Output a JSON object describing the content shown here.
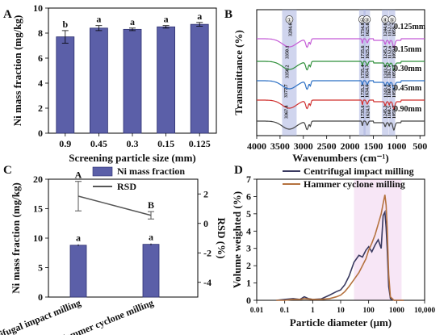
{
  "panels": {
    "A": "A",
    "B": "B",
    "C": "C",
    "D": "D"
  },
  "chart_data": [
    {
      "id": "A",
      "type": "bar",
      "categories": [
        "0.9",
        "0.45",
        "0.3",
        "0.15",
        "0.125"
      ],
      "values": [
        7.7,
        8.4,
        8.3,
        8.5,
        8.7
      ],
      "errors": [
        0.5,
        0.2,
        0.1,
        0.1,
        0.15
      ],
      "letters": [
        "b",
        "a",
        "a",
        "a",
        "a"
      ],
      "xlabel": "Screening particle size (mm)",
      "ylabel": "Ni mass fraction (mg/kg)",
      "ylim": [
        0,
        10
      ],
      "yticks": [
        0,
        2,
        4,
        6,
        8,
        10
      ],
      "bar_color": "#5b5fa8"
    },
    {
      "id": "B",
      "type": "line",
      "xlabel": "Wavenumbers (cm⁻¹)",
      "ylabel": "Transmittance (%)",
      "xlim": [
        4000,
        400
      ],
      "xticks": [
        4000,
        3500,
        3000,
        2500,
        2000,
        1500,
        1000,
        500
      ],
      "series": [
        {
          "name": "0.125mm",
          "color": "#c45ad6"
        },
        {
          "name": "0.15mm",
          "color": "#2f8f3a"
        },
        {
          "name": "0.30mm",
          "color": "#2b6fc4"
        },
        {
          "name": "0.45mm",
          "color": "#d0302f"
        },
        {
          "name": "0.90mm",
          "color": "#444444"
        }
      ],
      "bands": [
        {
          "marker": "①",
          "x": 3300
        },
        {
          "marker": "②",
          "x": 1735
        },
        {
          "marker": "③",
          "x": 1640
        },
        {
          "marker": "④",
          "x": 1245
        },
        {
          "marker": "⑤",
          "x": 1100
        }
      ],
      "peak_labels": [
        {
          "x": 3284,
          "text": "3284.6",
          "series": 0
        },
        {
          "x": 3350,
          "text": "3350.1",
          "series": 1
        },
        {
          "x": 3350,
          "text": "3350.2",
          "series": 2
        },
        {
          "x": 3377,
          "text": "3377.7",
          "series": 3
        },
        {
          "x": 3367,
          "text": "3367.4",
          "series": 4
        },
        {
          "x": 1735,
          "text": "1734.8",
          "series": 0
        },
        {
          "x": 1625,
          "text": "1625.6",
          "series": 0
        },
        {
          "x": 1244,
          "text": "1244.6",
          "series": 0
        },
        {
          "x": 1152,
          "text": "1152.5",
          "series": 0
        },
        {
          "x": 1059,
          "text": "1059.7",
          "series": 0
        },
        {
          "x": 1735,
          "text": "1735.6",
          "series": 1
        },
        {
          "x": 1625,
          "text": "1625.2",
          "series": 1
        },
        {
          "x": 1245,
          "text": "1245.3",
          "series": 1
        },
        {
          "x": 1152,
          "text": "1152.6",
          "series": 1
        },
        {
          "x": 1059,
          "text": "1059.8",
          "series": 1
        },
        {
          "x": 1735,
          "text": "1735.4",
          "series": 2
        },
        {
          "x": 1634,
          "text": "1634.7",
          "series": 2
        },
        {
          "x": 1243,
          "text": "1243.5",
          "series": 2
        },
        {
          "x": 1161,
          "text": "1161.7",
          "series": 2
        },
        {
          "x": 1059,
          "text": "1059.4",
          "series": 2
        },
        {
          "x": 1735,
          "text": "1735.3",
          "series": 3
        },
        {
          "x": 1634,
          "text": "1634.6",
          "series": 3
        },
        {
          "x": 1243,
          "text": "1243.3",
          "series": 3
        },
        {
          "x": 1160,
          "text": "1160.6",
          "series": 3
        },
        {
          "x": 1059,
          "text": "1059.1",
          "series": 3
        },
        {
          "x": 1735,
          "text": "1735.6",
          "series": 4
        },
        {
          "x": 1624,
          "text": "1624.5",
          "series": 4
        },
        {
          "x": 1245,
          "text": "1245.2",
          "series": 4
        },
        {
          "x": 1160,
          "text": "1160.5",
          "series": 4
        },
        {
          "x": 1059,
          "text": "1059.2",
          "series": 4
        }
      ]
    },
    {
      "id": "C",
      "type": "bar",
      "categories": [
        "Centrifugal impact milling",
        "Hammer cyclone milling"
      ],
      "values": [
        8.8,
        8.95
      ],
      "errors": [
        0.15,
        0.15
      ],
      "letters": [
        "a",
        "a"
      ],
      "bar_color": "#5b5fa8",
      "ylabel": "Ni mass fraction (mg/kg)",
      "ylim": [
        0,
        20
      ],
      "yticks": [
        0,
        5,
        10,
        15,
        20
      ],
      "rsd": {
        "name": "RSD",
        "values": [
          1.85,
          0.55
        ],
        "errors": [
          1.0,
          0.25
        ],
        "letters": [
          "A",
          "B"
        ],
        "ylabel": "RSD (%)",
        "ylim": [
          -5,
          3
        ],
        "yticks": [
          -4,
          -2,
          0,
          2
        ]
      },
      "legend": [
        "Ni mass fraction",
        "RSD"
      ]
    },
    {
      "id": "D",
      "type": "line",
      "xlabel": "Particle diameter (μm)",
      "ylabel": "Volume weighted (%)",
      "xscale": "log",
      "xlim": [
        0.01,
        10000
      ],
      "xticks": [
        "0.01",
        "0.1",
        "1",
        "10",
        "100",
        "1000",
        "10,000"
      ],
      "ylim": [
        0,
        7
      ],
      "yticks": [
        0,
        1,
        2,
        3,
        4,
        5,
        6,
        7
      ],
      "series": [
        {
          "name": "Centrifugal impact milling",
          "color": "#3a3a60",
          "x": [
            0.05,
            0.1,
            0.2,
            0.35,
            0.5,
            0.7,
            1,
            2,
            4,
            7,
            10,
            14,
            20,
            30,
            45,
            60,
            80,
            100,
            130,
            170,
            220,
            280,
            330,
            380,
            420,
            460,
            520,
            600,
            800,
            1200,
            1800
          ],
          "y": [
            0.0,
            0.05,
            0.1,
            0.05,
            0.2,
            0.1,
            0.05,
            0.08,
            0.3,
            0.5,
            0.6,
            0.9,
            1.4,
            2.2,
            2.6,
            2.5,
            2.9,
            3.1,
            2.8,
            3.2,
            3.5,
            3.0,
            4.9,
            5.1,
            4.2,
            3.0,
            0.8,
            0.1,
            0.0,
            0.0,
            0.0
          ]
        },
        {
          "name": "Hammer cyclone milling",
          "color": "#b5723f",
          "x": [
            0.05,
            0.1,
            0.2,
            0.35,
            0.5,
            0.7,
            1,
            2,
            4,
            7,
            10,
            14,
            20,
            30,
            45,
            60,
            80,
            100,
            130,
            170,
            220,
            280,
            330,
            380,
            420,
            460,
            520,
            600,
            800,
            1200,
            1800
          ],
          "y": [
            0.0,
            0.0,
            0.05,
            0.05,
            0.1,
            0.08,
            0.05,
            0.05,
            0.1,
            0.2,
            0.3,
            0.5,
            0.8,
            1.2,
            1.6,
            2.0,
            2.4,
            2.9,
            3.3,
            3.8,
            4.4,
            5.0,
            5.6,
            6.1,
            5.5,
            4.2,
            1.5,
            0.2,
            0.0,
            0.0,
            0.0
          ]
        }
      ]
    }
  ]
}
